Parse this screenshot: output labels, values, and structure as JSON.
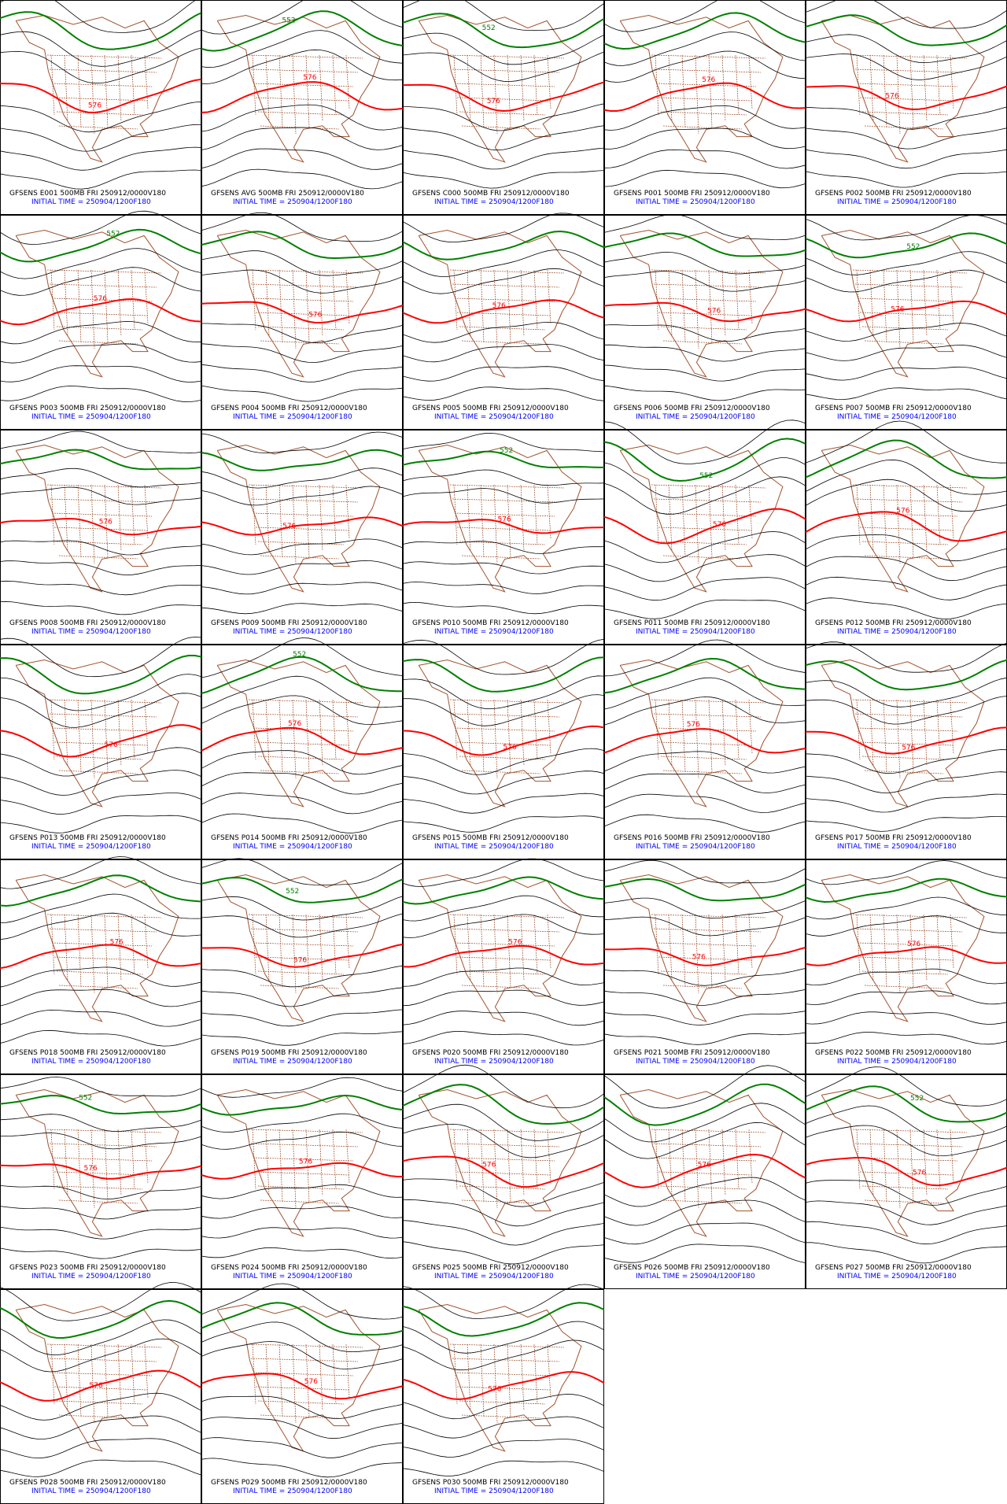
{
  "panels": [
    {
      "title": "GFSENS E001 500MB FRI 250912/0000V180",
      "initial_time": "INITIAL TIME = 250904/1200F180",
      "contour_labels": [
        "576"
      ]
    },
    {
      "title": "GFSENS AVG 500MB FRI 250912/0000V180",
      "initial_time": "INITIAL TIME = 250904/1200F180",
      "contour_labels": [
        "576",
        "552"
      ]
    },
    {
      "title": "GFSENS C000 500MB FRI 250912/0000V180",
      "initial_time": "INITIAL TIME = 250904/1200F180",
      "contour_labels": [
        "576",
        "552"
      ]
    },
    {
      "title": "GFSENS P001 500MB FRI 250912/0000V180",
      "initial_time": "INITIAL TIME = 250904/1200F180",
      "contour_labels": [
        "576"
      ]
    },
    {
      "title": "GFSENS P002 500MB FRI 250912/0000V180",
      "initial_time": "INITIAL TIME = 250904/1200F180",
      "contour_labels": [
        "576"
      ]
    },
    {
      "title": "GFSENS P003 500MB FRI 250912/0000V180",
      "initial_time": "INITIAL TIME = 250904/1200F180",
      "contour_labels": [
        "576",
        "552"
      ]
    },
    {
      "title": "GFSENS P004 500MB FRI 250912/0000V180",
      "initial_time": "INITIAL TIME = 250904/1200F180",
      "contour_labels": [
        "576"
      ]
    },
    {
      "title": "GFSENS P005 500MB FRI 250912/0000V180",
      "initial_time": "INITIAL TIME = 250904/1200F180",
      "contour_labels": [
        "576"
      ]
    },
    {
      "title": "GFSENS P006 500MB FRI 250912/0000V180",
      "initial_time": "INITIAL TIME = 250904/1200F180",
      "contour_labels": [
        "576"
      ]
    },
    {
      "title": "GFSENS P007 500MB FRI 250912/0000V180",
      "initial_time": "INITIAL TIME = 250904/1200F180",
      "contour_labels": [
        "576",
        "552"
      ]
    },
    {
      "title": "GFSENS P008 500MB FRI 250912/0000V180",
      "initial_time": "INITIAL TIME = 250904/1200F180",
      "contour_labels": [
        "576"
      ]
    },
    {
      "title": "GFSENS P009 500MB FRI 250912/0000V180",
      "initial_time": "INITIAL TIME = 250904/1200F180",
      "contour_labels": [
        "576"
      ]
    },
    {
      "title": "GFSENS P010 500MB FRI 250912/0000V180",
      "initial_time": "INITIAL TIME = 250904/1200F180",
      "contour_labels": [
        "576",
        "552"
      ]
    },
    {
      "title": "GFSENS P011 500MB FRI 250912/0000V180",
      "initial_time": "INITIAL TIME = 250904/1200F180",
      "contour_labels": [
        "576",
        "552"
      ]
    },
    {
      "title": "GFSENS P012 500MB FRI 250912/0000V180",
      "initial_time": "INITIAL TIME = 250904/1200F180",
      "contour_labels": [
        "576"
      ]
    },
    {
      "title": "GFSENS P013 500MB FRI 250912/0000V180",
      "initial_time": "INITIAL TIME = 250904/1200F180",
      "contour_labels": [
        "576"
      ]
    },
    {
      "title": "GFSENS P014 500MB FRI 250912/0000V180",
      "initial_time": "INITIAL TIME = 250904/1200F180",
      "contour_labels": [
        "576",
        "552"
      ]
    },
    {
      "title": "GFSENS P015 500MB FRI 250912/0000V180",
      "initial_time": "INITIAL TIME = 250904/1200F180",
      "contour_labels": [
        "576"
      ]
    },
    {
      "title": "GFSENS P016 500MB FRI 250912/0000V180",
      "initial_time": "INITIAL TIME = 250904/1200F180",
      "contour_labels": [
        "576"
      ]
    },
    {
      "title": "GFSENS P017 500MB FRI 250912/0000V180",
      "initial_time": "INITIAL TIME = 250904/1200F180",
      "contour_labels": [
        "576"
      ]
    },
    {
      "title": "GFSENS P018 500MB FRI 250912/0000V180",
      "initial_time": "INITIAL TIME = 250904/1200F180",
      "contour_labels": [
        "576"
      ]
    },
    {
      "title": "GFSENS P019 500MB FRI 250912/0000V180",
      "initial_time": "INITIAL TIME = 250904/1200F180",
      "contour_labels": [
        "576",
        "552"
      ]
    },
    {
      "title": "GFSENS P020 500MB FRI 250912/0000V180",
      "initial_time": "INITIAL TIME = 250904/1200F180",
      "contour_labels": [
        "576"
      ]
    },
    {
      "title": "GFSENS P021 500MB FRI 250912/0000V180",
      "initial_time": "INITIAL TIME = 250904/1200F180",
      "contour_labels": [
        "576"
      ]
    },
    {
      "title": "GFSENS P022 500MB FRI 250912/0000V180",
      "initial_time": "INITIAL TIME = 250904/1200F180",
      "contour_labels": [
        "576"
      ]
    },
    {
      "title": "GFSENS P023 500MB FRI 250912/0000V180",
      "initial_time": "INITIAL TIME = 250904/1200F180",
      "contour_labels": [
        "576",
        "552"
      ]
    },
    {
      "title": "GFSENS P024 500MB FRI 250912/0000V180",
      "initial_time": "INITIAL TIME = 250904/1200F180",
      "contour_labels": [
        "576"
      ]
    },
    {
      "title": "GFSENS P025 500MB FRI 250912/0000V180",
      "initial_time": "INITIAL TIME = 250904/1200F180",
      "contour_labels": [
        "576"
      ]
    },
    {
      "title": "GFSENS P026 500MB FRI 250912/0000V180",
      "initial_time": "INITIAL TIME = 250904/1200F180",
      "contour_labels": [
        "576"
      ]
    },
    {
      "title": "GFSENS P027 500MB FRI 250912/0000V180",
      "initial_time": "INITIAL TIME = 250904/1200F180",
      "contour_labels": [
        "576",
        "552"
      ]
    },
    {
      "title": "GFSENS P028 500MB FRI 250912/0000V180",
      "initial_time": "INITIAL TIME = 250904/1200F180",
      "contour_labels": [
        "576"
      ]
    },
    {
      "title": "GFSENS P029 500MB FRI 250912/0000V180",
      "initial_time": "INITIAL TIME = 250904/1200F180",
      "contour_labels": [
        "576"
      ]
    },
    {
      "title": "GFSENS P030 500MB FRI 250912/0000V180",
      "initial_time": "INITIAL TIME = 250904/1200F180",
      "contour_labels": [
        "576"
      ]
    }
  ]
}
